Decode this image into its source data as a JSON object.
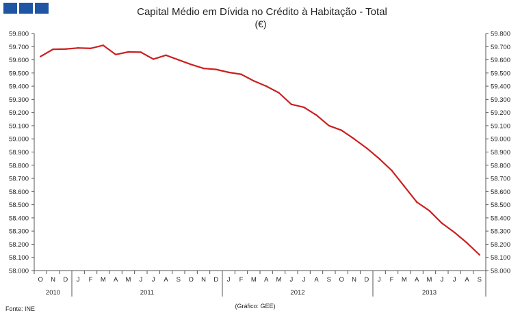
{
  "chart_data": {
    "type": "line",
    "title": "Capital Médio em Dívida no Crédito à Habitação - Total",
    "subtitle": "(€)",
    "source": "Fonte: INE",
    "credit": "(Gráfico: GEE)",
    "ylim": [
      58000,
      59800
    ],
    "y_ticks": [
      "58.000",
      "58.100",
      "58.200",
      "58.300",
      "58.400",
      "58.500",
      "58.600",
      "58.700",
      "58.800",
      "58.900",
      "59.000",
      "59.100",
      "59.200",
      "59.300",
      "59.400",
      "59.500",
      "59.600",
      "59.700",
      "59.800"
    ],
    "y_tick_values": [
      58000,
      58100,
      58200,
      58300,
      58400,
      58500,
      58600,
      58700,
      58800,
      58900,
      59000,
      59100,
      59200,
      59300,
      59400,
      59500,
      59600,
      59700,
      59800
    ],
    "x_months": [
      "O",
      "N",
      "D",
      "J",
      "F",
      "M",
      "A",
      "M",
      "J",
      "J",
      "A",
      "S",
      "O",
      "N",
      "D",
      "J",
      "F",
      "M",
      "A",
      "M",
      "J",
      "J",
      "A",
      "S",
      "O",
      "N",
      "D",
      "J",
      "F",
      "M",
      "A",
      "M",
      "J",
      "J",
      "A",
      "S"
    ],
    "years": [
      {
        "label": "2010",
        "months": 3
      },
      {
        "label": "2011",
        "months": 12
      },
      {
        "label": "2012",
        "months": 12
      },
      {
        "label": "2013",
        "months": 9
      }
    ],
    "line_color": "#cc1f1f",
    "grid": false,
    "series": [
      {
        "values": [
          59625,
          59680,
          59682,
          59690,
          59687,
          59710,
          59640,
          59660,
          59658,
          59605,
          59635,
          59600,
          59565,
          59535,
          59527,
          59505,
          59490,
          59440,
          59400,
          59350,
          59262,
          59240,
          59180,
          59100,
          59065,
          59000,
          58930,
          58850,
          58760,
          58640,
          58520,
          58455,
          58360,
          58290,
          58210,
          58120
        ]
      }
    ]
  }
}
